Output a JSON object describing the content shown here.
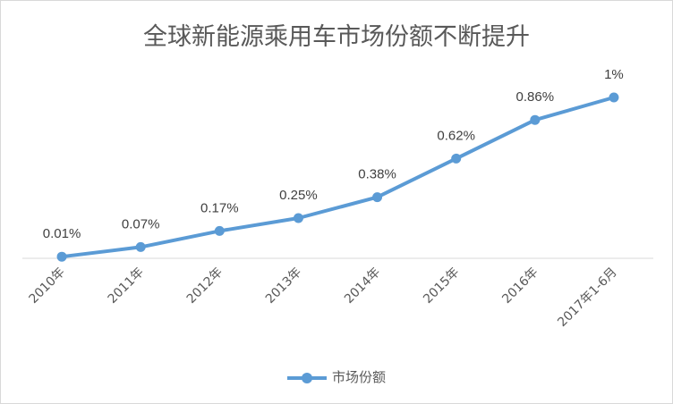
{
  "chart_data": {
    "type": "line",
    "title": "全球新能源乘用车市场份额不断提升",
    "categories": [
      "2010年",
      "2011年",
      "2012年",
      "2013年",
      "2014年",
      "2015年",
      "2016年",
      "2017年1-6月"
    ],
    "series": [
      {
        "name": "市场份额",
        "values": [
          0.01,
          0.07,
          0.17,
          0.25,
          0.38,
          0.62,
          0.86,
          1
        ],
        "labels": [
          "0.01%",
          "0.07%",
          "0.17%",
          "0.25%",
          "0.38%",
          "0.62%",
          "0.86%",
          "1%"
        ],
        "color": "#5b9bd5"
      }
    ],
    "ylim": [
      0,
      1.05
    ],
    "grid": false,
    "legend": "bottom"
  }
}
